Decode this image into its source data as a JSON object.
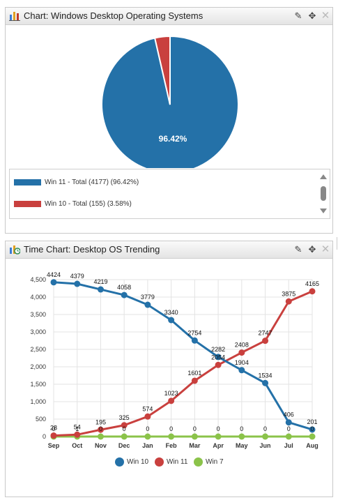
{
  "pie_panel": {
    "title": "Chart: Windows Desktop Operating Systems",
    "center_label": "96.42%",
    "legend": [
      {
        "label": "Win 11 - Total (4177) (96.42%)",
        "color": "#2471a8"
      },
      {
        "label": "Win 10 - Total (155) (3.58%)",
        "color": "#c9403e"
      }
    ]
  },
  "line_panel": {
    "title": "Time Chart: Desktop OS Trending",
    "legend": [
      {
        "label": "Win 10",
        "color": "#2471a8"
      },
      {
        "label": "Win 11",
        "color": "#c9403e"
      },
      {
        "label": "Win 7",
        "color": "#8bc34a"
      }
    ]
  },
  "header_icons": {
    "edit": "edit-icon",
    "move": "move-icon",
    "close": "close-icon"
  },
  "chart_data": [
    {
      "type": "pie",
      "title": "Chart: Windows Desktop Operating Systems",
      "categories": [
        "Win 11 - Total (4177) (96.42%)",
        "Win 10 - Total (155) (3.58%)"
      ],
      "values": [
        4177,
        155
      ],
      "percentages": [
        96.42,
        3.58
      ],
      "colors": [
        "#2471a8",
        "#c9403e"
      ],
      "legend": "bottom"
    },
    {
      "type": "line",
      "title": "Time Chart: Desktop OS Trending",
      "x": [
        "Sep",
        "Oct",
        "Nov",
        "Dec",
        "Jan",
        "Feb",
        "Mar",
        "Apr",
        "May",
        "Jun",
        "Jul",
        "Aug"
      ],
      "ylim": [
        0,
        4500
      ],
      "yticks": [
        "0",
        "500",
        "1,000",
        "1,500",
        "2,000",
        "2,500",
        "3,000",
        "3,500",
        "4,000",
        "4,500"
      ],
      "grid": true,
      "legend": "bottom",
      "series": [
        {
          "name": "Win 10",
          "color": "#2471a8",
          "values": [
            4424,
            4379,
            4219,
            4058,
            3779,
            3340,
            2754,
            2282,
            1904,
            1534,
            406,
            201
          ],
          "labels": [
            "4424",
            "4379",
            "4219",
            "4058",
            "3779",
            "3340",
            "2754",
            "2282",
            "1904",
            "1534",
            "406",
            "201"
          ]
        },
        {
          "name": "Win 11",
          "color": "#c9403e",
          "values": [
            28,
            54,
            195,
            325,
            574,
            1023,
            1601,
            2054,
            2408,
            2747,
            3875,
            4165
          ],
          "labels": [
            "28",
            "54",
            "195",
            "325",
            "574",
            "1023",
            "1601",
            "2054",
            "2408",
            "2747",
            "3875",
            "4165"
          ]
        },
        {
          "name": "Win 7",
          "color": "#8bc34a",
          "values": [
            0,
            1,
            0,
            0,
            0,
            0,
            0,
            0,
            0,
            0,
            0,
            0
          ],
          "labels": [
            "0",
            "1",
            "0",
            "0",
            "0",
            "0",
            "0",
            "0",
            "0",
            "0",
            "0",
            "0"
          ]
        }
      ]
    }
  ]
}
